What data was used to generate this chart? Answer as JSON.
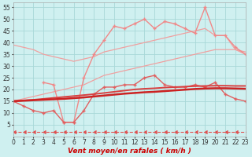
{
  "series": [
    {
      "name": "upper_diagonal_top",
      "color": "#f0a0a0",
      "linewidth": 0.9,
      "marker": null,
      "markersize": 0,
      "linestyle": "-",
      "y": [
        39,
        38,
        37,
        35,
        34,
        33,
        32,
        33,
        34,
        36,
        37,
        38,
        39,
        40,
        41,
        42,
        43,
        44,
        45,
        46,
        43,
        43,
        37,
        35
      ]
    },
    {
      "name": "upper_diagonal_bottom",
      "color": "#f0a0a0",
      "linewidth": 0.9,
      "marker": null,
      "markersize": 0,
      "linestyle": "-",
      "y": [
        15,
        16,
        17,
        18,
        19,
        20,
        21,
        22,
        24,
        26,
        27,
        28,
        29,
        30,
        31,
        32,
        33,
        34,
        35,
        36,
        37,
        37,
        37,
        36
      ]
    },
    {
      "name": "peaked_zigzag",
      "color": "#f08888",
      "linewidth": 1.0,
      "marker": "+",
      "markersize": 3,
      "linestyle": "-",
      "y": [
        null,
        null,
        null,
        23,
        22,
        6,
        6,
        25,
        35,
        41,
        47,
        46,
        48,
        50,
        46,
        49,
        48,
        46,
        44,
        55,
        43,
        43,
        38,
        35
      ]
    },
    {
      "name": "lower_zigzag_medium",
      "color": "#e06060",
      "linewidth": 1.0,
      "marker": "+",
      "markersize": 3,
      "linestyle": "-",
      "y": [
        15,
        13,
        11,
        10,
        11,
        6,
        6,
        11,
        18,
        21,
        21,
        22,
        22,
        25,
        26,
        22,
        21,
        21,
        22,
        21,
        23,
        18,
        16,
        15
      ]
    },
    {
      "name": "lower_trend_medium",
      "color": "#d84040",
      "linewidth": 1.4,
      "marker": null,
      "markersize": 0,
      "linestyle": "-",
      "y": [
        15,
        15.3,
        15.6,
        16,
        16.4,
        16.8,
        17.2,
        17.6,
        18,
        18.5,
        19,
        19.5,
        20,
        20.3,
        20.5,
        20.8,
        21,
        21.2,
        21.4,
        21.5,
        21.6,
        21.6,
        21.5,
        21.5
      ]
    },
    {
      "name": "lower_trend_dark",
      "color": "#cc2222",
      "linewidth": 1.8,
      "marker": null,
      "markersize": 0,
      "linestyle": "-",
      "y": [
        15,
        15.2,
        15.4,
        15.6,
        15.8,
        16,
        16.3,
        16.6,
        17,
        17.4,
        17.8,
        18.2,
        18.5,
        18.8,
        19,
        19.3,
        19.6,
        19.9,
        20.2,
        20.4,
        20.5,
        20.5,
        20.4,
        20.3
      ]
    },
    {
      "name": "bottom_arrow_dashed",
      "color": "#e05050",
      "linewidth": 0.8,
      "marker": 4,
      "markersize": 2.5,
      "linestyle": "--",
      "y": [
        2,
        2,
        2,
        2,
        2,
        2,
        2,
        2,
        2,
        2,
        2,
        2,
        2,
        2,
        2,
        2,
        2,
        2,
        2,
        2,
        2,
        2,
        2,
        2
      ]
    }
  ],
  "xlim": [
    0,
    23
  ],
  "ylim": [
    0,
    57
  ],
  "yticks": [
    5,
    10,
    15,
    20,
    25,
    30,
    35,
    40,
    45,
    50,
    55
  ],
  "xticks": [
    0,
    1,
    2,
    3,
    4,
    5,
    6,
    7,
    8,
    9,
    10,
    11,
    12,
    13,
    14,
    15,
    16,
    17,
    18,
    19,
    20,
    21,
    22,
    23
  ],
  "xlabel": "Vent moyen/en rafales ( km/h )",
  "background_color": "#cff0f0",
  "grid_color": "#a8d8d8",
  "tick_fontsize": 5.5,
  "label_fontsize": 6.5
}
